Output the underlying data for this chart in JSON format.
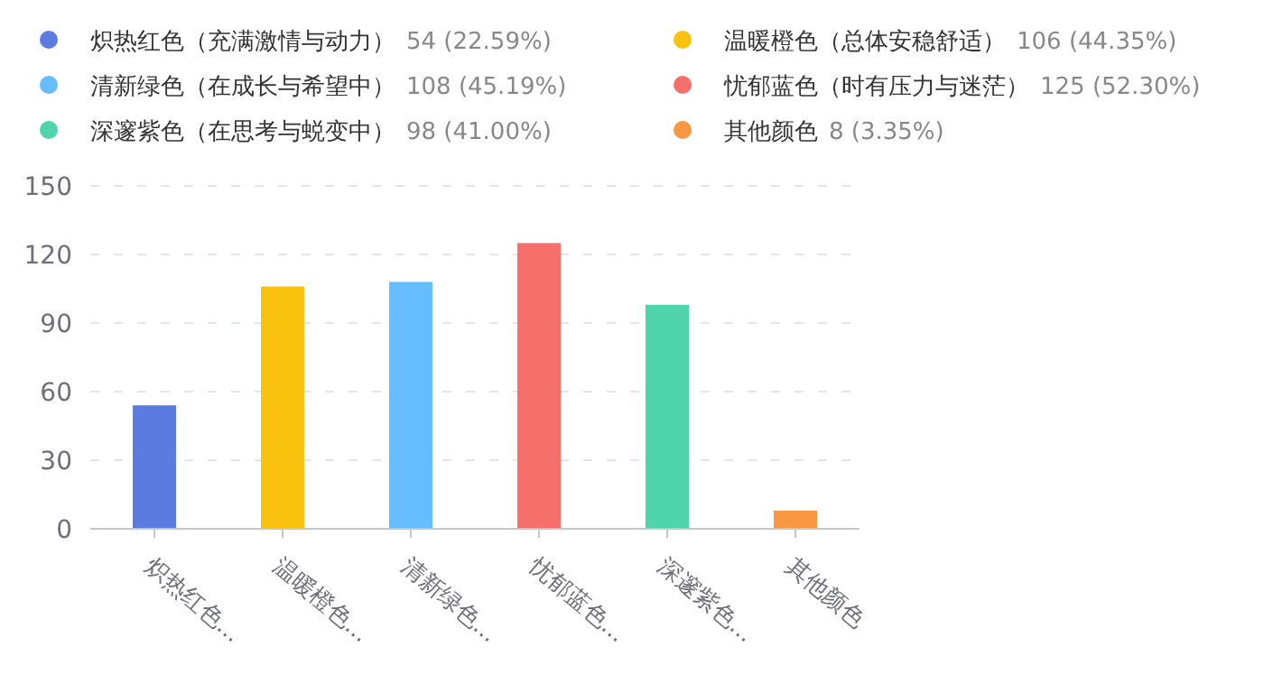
{
  "chart_data": {
    "type": "bar",
    "categories": [
      "炽热红色...",
      "温暖橙色...",
      "清新绿色...",
      "忧郁蓝色...",
      "深邃紫色...",
      "其他颜色"
    ],
    "series": [
      {
        "name": "炽热红色（充满激情与动力）",
        "color": "#5b7be0",
        "values": [
          54,
          null,
          null,
          null,
          null,
          null
        ]
      },
      {
        "name": "温暖橙色（总体安稳舒适）",
        "color": "#f8c20e",
        "values": [
          null,
          106,
          null,
          null,
          null,
          null
        ]
      },
      {
        "name": "清新绿色（在成长与希望中）",
        "color": "#66bdff",
        "values": [
          null,
          null,
          108,
          null,
          null,
          null
        ]
      },
      {
        "name": "忧郁蓝色（时有压力与迷茫）",
        "color": "#f6706b",
        "values": [
          null,
          null,
          null,
          125,
          null,
          null
        ]
      },
      {
        "name": "深邃紫色（在思考与蜕变中）",
        "color": "#4fd4ab",
        "values": [
          null,
          null,
          null,
          null,
          98,
          null
        ]
      },
      {
        "name": "其他颜色",
        "color": "#f99843",
        "values": [
          null,
          null,
          null,
          null,
          null,
          8
        ]
      }
    ],
    "annotations": [
      "54 (22.59%)",
      "106 (44.35%)",
      "108 (45.19%)",
      "125 (52.30%)",
      "98 (41.00%)",
      "8 (3.35%)"
    ],
    "ylim": [
      0,
      150
    ],
    "yticks": [
      0,
      30,
      60,
      90,
      120,
      150
    ],
    "grid": "y",
    "legend": "top"
  }
}
